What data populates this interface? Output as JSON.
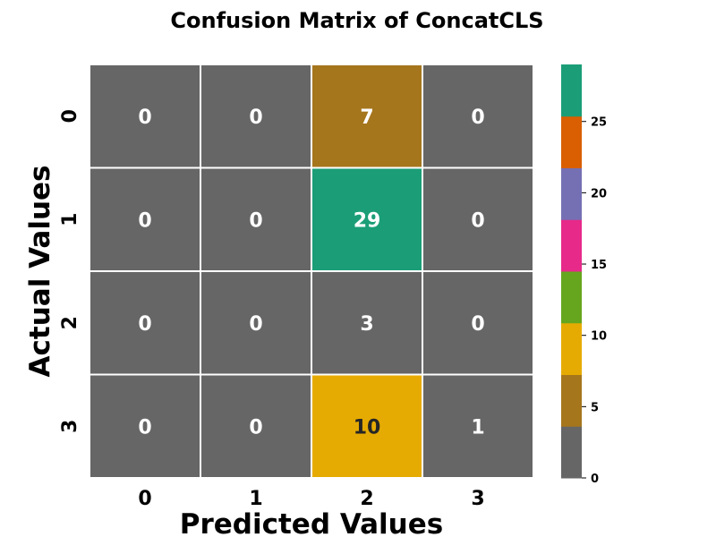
{
  "chart_data": {
    "type": "heatmap",
    "title": "Confusion Matrix of ConcatCLS",
    "xlabel": "Predicted Values",
    "ylabel": "Actual Values",
    "x_categories": [
      "0",
      "1",
      "2",
      "3"
    ],
    "y_categories": [
      "0",
      "1",
      "2",
      "3"
    ],
    "values": [
      [
        0,
        0,
        7,
        0
      ],
      [
        0,
        0,
        29,
        0
      ],
      [
        0,
        0,
        3,
        0
      ],
      [
        0,
        0,
        10,
        1
      ]
    ],
    "colorbar": {
      "range": [
        0,
        29
      ],
      "ticks": [
        "0",
        "5",
        "10",
        "15",
        "20",
        "25"
      ],
      "tick_values": [
        0,
        5,
        10,
        15,
        20,
        25
      ],
      "colors": [
        "#666666",
        "#a6761d",
        "#e6ab02",
        "#66a61e",
        "#e7298a",
        "#7570b3",
        "#d95f02",
        "#1b9e77"
      ]
    },
    "grid": true
  }
}
